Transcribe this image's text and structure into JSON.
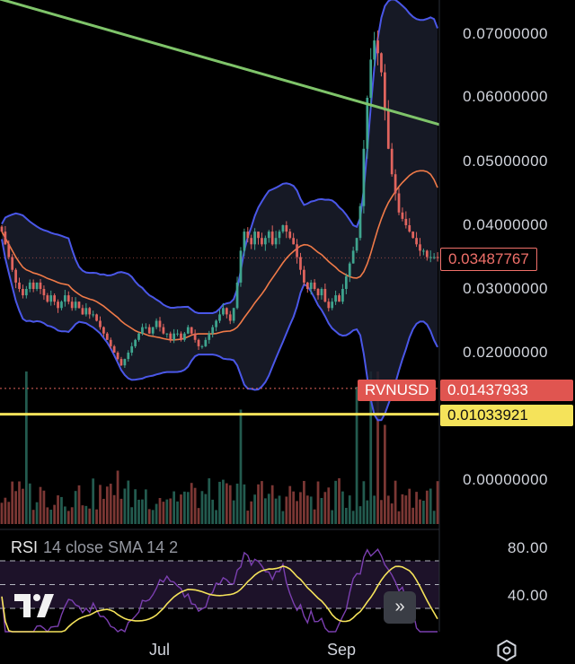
{
  "chart_data": {
    "type": "candlestick",
    "symbol": "RVNUSD",
    "price_axis": {
      "ticks": [
        "0.07000000",
        "0.06000000",
        "0.05000000",
        "0.04000000",
        "0.03000000",
        "0.02000000",
        "0.00000000"
      ],
      "tick_values": [
        0.07,
        0.06,
        0.05,
        0.04,
        0.03,
        0.02,
        0.0
      ],
      "ylim": [
        0.0095,
        0.075
      ]
    },
    "time_axis": {
      "labels": [
        "Jul",
        "Sep"
      ],
      "label_index": [
        45,
        98
      ],
      "bars": 125
    },
    "current_price": "0.03487767",
    "symbol_price": "0.01437933",
    "support_line": {
      "value": 0.01033921,
      "label": "0.01033921",
      "color": "#f5e35a"
    },
    "trendline": {
      "from": [
        0,
        0.0755
      ],
      "to": [
        124,
        0.0558
      ],
      "color": "#7fc46a"
    },
    "up_color": "#3fa58f",
    "down_color": "#e0645e",
    "band_color": "#4a57e8",
    "ma_color": "#f07a48",
    "closes": [
      0.039,
      0.037,
      0.035,
      0.033,
      0.031,
      0.03,
      0.029,
      0.03,
      0.031,
      0.03,
      0.031,
      0.03,
      0.029,
      0.028,
      0.029,
      0.028,
      0.027,
      0.028,
      0.029,
      0.028,
      0.027,
      0.028,
      0.027,
      0.026,
      0.027,
      0.026,
      0.026,
      0.025,
      0.024,
      0.023,
      0.022,
      0.021,
      0.02,
      0.019,
      0.018,
      0.019,
      0.02,
      0.021,
      0.022,
      0.023,
      0.024,
      0.024,
      0.023,
      0.024,
      0.025,
      0.024,
      0.023,
      0.023,
      0.022,
      0.023,
      0.023,
      0.022,
      0.023,
      0.024,
      0.023,
      0.022,
      0.021,
      0.021,
      0.022,
      0.023,
      0.024,
      0.025,
      0.026,
      0.027,
      0.026,
      0.025,
      0.027,
      0.031,
      0.036,
      0.039,
      0.038,
      0.037,
      0.039,
      0.038,
      0.037,
      0.038,
      0.039,
      0.037,
      0.038,
      0.039,
      0.04,
      0.039,
      0.038,
      0.037,
      0.035,
      0.033,
      0.031,
      0.03,
      0.031,
      0.03,
      0.029,
      0.03,
      0.028,
      0.027,
      0.028,
      0.029,
      0.028,
      0.03,
      0.032,
      0.034,
      0.036,
      0.038,
      0.043,
      0.052,
      0.06,
      0.066,
      0.069,
      0.067,
      0.064,
      0.058,
      0.052,
      0.048,
      0.045,
      0.042,
      0.041,
      0.04,
      0.039,
      0.038,
      0.037,
      0.036,
      0.036,
      0.035,
      0.035,
      0.035,
      0.0349
    ],
    "volume_peaks": [
      {
        "i": 7,
        "v": 1.0
      },
      {
        "i": 33,
        "v": 0.35
      },
      {
        "i": 68,
        "v": 0.75
      },
      {
        "i": 101,
        "v": 0.9
      },
      {
        "i": 105,
        "v": 1.0
      },
      {
        "i": 107,
        "v": 1.0
      },
      {
        "i": 109,
        "v": 0.65
      }
    ],
    "rsi": {
      "title": "RSI",
      "params": "14 close SMA 14 2",
      "levels": [
        "80.00",
        "40.00"
      ],
      "level_values": [
        80,
        40
      ],
      "ylim": [
        20,
        100
      ],
      "line_color": "#7b3fb0",
      "sma_color": "#f5e35a"
    }
  },
  "ui": {
    "expand_label": "»",
    "logo": "tradingview-logo",
    "settings_icon": "gear-icon"
  }
}
